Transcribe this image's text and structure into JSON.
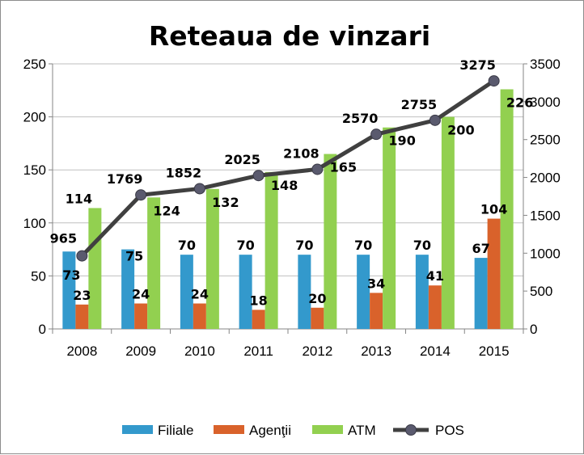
{
  "chart_data": {
    "type": "bar",
    "title": "Reteaua de vinzari",
    "categories": [
      "2008",
      "2009",
      "2010",
      "2011",
      "2012",
      "2013",
      "2014",
      "2015"
    ],
    "y_left": {
      "min": 0,
      "max": 250,
      "step": 50,
      "ticks": [
        "0",
        "50",
        "100",
        "150",
        "200",
        "250"
      ]
    },
    "y_right": {
      "min": 0,
      "max": 3500,
      "step": 500,
      "ticks": [
        "0",
        "500",
        "1000",
        "1500",
        "2000",
        "2500",
        "3000",
        "3500"
      ]
    },
    "grid": true,
    "legend_position": "bottom",
    "series": [
      {
        "name": "Filiale",
        "type": "bar",
        "axis": "left",
        "color": "#3399cc",
        "values": [
          73,
          75,
          70,
          70,
          70,
          70,
          70,
          67
        ],
        "labels": [
          "73",
          "75",
          "70",
          "70",
          "70",
          "70",
          "70",
          "67"
        ]
      },
      {
        "name": "Agenţii",
        "type": "bar",
        "axis": "left",
        "color": "#d9622b",
        "values": [
          23,
          24,
          24,
          18,
          20,
          34,
          41,
          104
        ],
        "labels": [
          "23",
          "24",
          "24",
          "18",
          "20",
          "34",
          "41",
          "104"
        ]
      },
      {
        "name": "ATM",
        "type": "bar",
        "axis": "left",
        "color": "#92d050",
        "values": [
          114,
          124,
          132,
          148,
          165,
          190,
          200,
          226
        ],
        "labels": [
          "114",
          "124",
          "132",
          "148",
          "165",
          "190",
          "200",
          "226"
        ]
      },
      {
        "name": "POS",
        "type": "line",
        "axis": "right",
        "color": "#404040",
        "marker_color": "#5a5a6e",
        "values": [
          965,
          1769,
          1852,
          2025,
          2108,
          2570,
          2755,
          3275
        ],
        "labels": [
          "965",
          "1769",
          "1852",
          "2025",
          "2108",
          "2570",
          "2755",
          "3275"
        ]
      }
    ]
  }
}
